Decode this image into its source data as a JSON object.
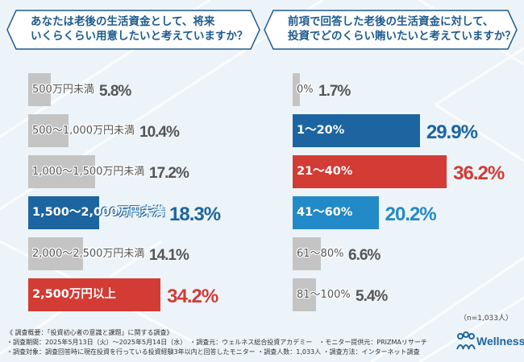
{
  "questions": {
    "left": {
      "line1": "あなたは老後の生活資金として、将来",
      "line2": "いくらくらい用意したいと考えていますか？"
    },
    "right": {
      "line1": "前項で回答した老後の生活資金に対して、",
      "line2": "投資でどのくらい賄いたいと考えていますか？"
    }
  },
  "colors": {
    "background": "#edf4f9",
    "gray": "#c4c4c4",
    "blue": "#1c65a0",
    "red": "#d33b35",
    "light_blue": "#238ac8",
    "header_text": "#1c5a91"
  },
  "chart_data": [
    {
      "type": "bar",
      "orientation": "horizontal",
      "unit": "%",
      "categories": [
        "500万円未満",
        "500～1,000万円未満",
        "1,000～1,500万円未満",
        "1,500～2,000万円未満",
        "2,000～2,500万円未満",
        "2,500万円以上"
      ],
      "values": [
        5.8,
        10.4,
        17.2,
        18.3,
        14.1,
        34.2
      ],
      "value_labels": [
        "5.8%",
        "10.4%",
        "17.2%",
        "18.3%",
        "14.1%",
        "34.2%"
      ],
      "bar_colors": [
        "gray",
        "gray",
        "gray",
        "blue",
        "gray",
        "red"
      ]
    },
    {
      "type": "bar",
      "orientation": "horizontal",
      "unit": "%",
      "categories": [
        "0%",
        "1～20%",
        "21～40%",
        "41～60%",
        "61～80%",
        "81～100%"
      ],
      "values": [
        1.7,
        29.9,
        36.2,
        20.2,
        6.6,
        5.4
      ],
      "value_labels": [
        "1.7%",
        "29.9%",
        "36.2%",
        "20.2%",
        "6.6%",
        "5.4%"
      ],
      "bar_colors": [
        "gray",
        "blue",
        "red",
        "light_blue",
        "gray",
        "gray"
      ]
    }
  ],
  "sample_note": "（n=1,033人）",
  "footer": {
    "line1": "《 調査概要：「投資初心者の意識と課題」に関する調査》",
    "line2": "・調査期間：2025年5月13日（火）～2025年5月14日（水）　・調査元：ウェルネス総合投資アカデミー　・モニター提供元：PRIZMAリサーチ",
    "line3": "・調査対象：調査回答時に現在投資を行っている投資経験3年以内と回答したモニター ・調査人数：1,033人 ・調査方法：インターネット調査"
  },
  "logo": {
    "text": "Wellness"
  }
}
